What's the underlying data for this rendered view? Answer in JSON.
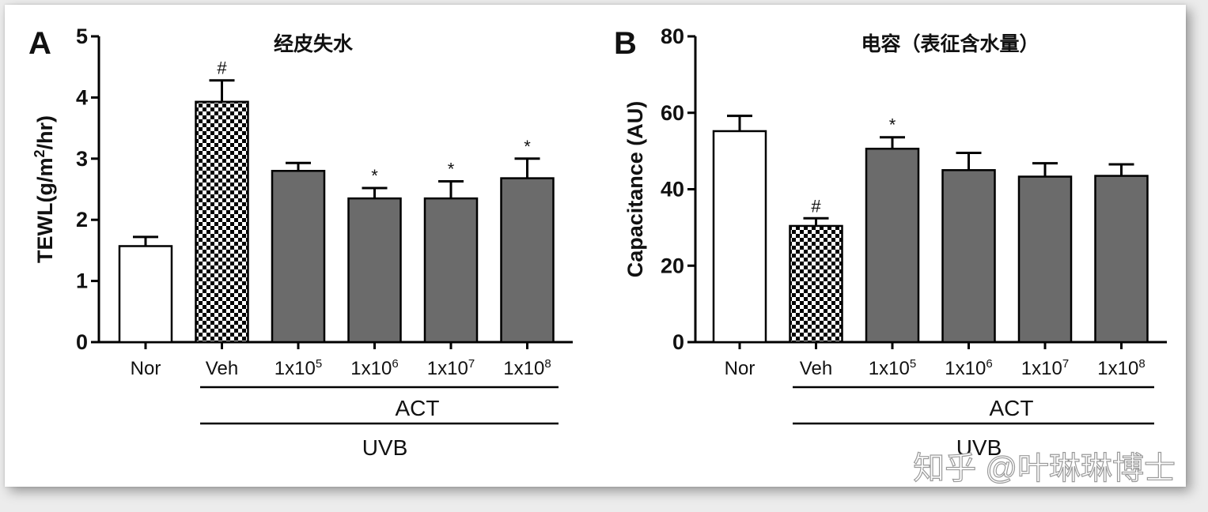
{
  "chart_data": [
    {
      "type": "bar",
      "panel": "A",
      "title": "经皮失水",
      "ylabel_main": "TEWL(g/m",
      "ylabel_sup": "2",
      "ylabel_end": "/hr)",
      "ylim": [
        0,
        5
      ],
      "yticks": [
        "0",
        "1",
        "2",
        "3",
        "4",
        "5"
      ],
      "categories": [
        {
          "base": "Nor",
          "sup": ""
        },
        {
          "base": "Veh",
          "sup": ""
        },
        {
          "base": "1x10",
          "sup": "5"
        },
        {
          "base": "1x10",
          "sup": "6"
        },
        {
          "base": "1x10",
          "sup": "7"
        },
        {
          "base": "1x10",
          "sup": "8"
        }
      ],
      "values": [
        1.57,
        3.93,
        2.8,
        2.35,
        2.35,
        2.68
      ],
      "errors": [
        0.15,
        0.35,
        0.13,
        0.17,
        0.28,
        0.32
      ],
      "fills": [
        "white",
        "checker",
        "gray",
        "gray",
        "gray",
        "gray"
      ],
      "marks": [
        "",
        "#",
        "",
        "*",
        "*",
        "*"
      ],
      "group_labels": {
        "act": "ACT",
        "uvb": "UVB"
      }
    },
    {
      "type": "bar",
      "panel": "B",
      "title": "电容（表征含水量）",
      "ylabel": "Capacitance (AU)",
      "ylim": [
        0,
        80
      ],
      "yticks": [
        "0",
        "20",
        "40",
        "60",
        "80"
      ],
      "categories": [
        {
          "base": "Nor",
          "sup": ""
        },
        {
          "base": "Veh",
          "sup": ""
        },
        {
          "base": "1x10",
          "sup": "5"
        },
        {
          "base": "1x10",
          "sup": "6"
        },
        {
          "base": "1x10",
          "sup": "7"
        },
        {
          "base": "1x10",
          "sup": "8"
        }
      ],
      "values": [
        55.2,
        30.4,
        50.6,
        45.0,
        43.3,
        43.5
      ],
      "errors": [
        4.0,
        2.0,
        3.0,
        4.5,
        3.5,
        3.0
      ],
      "fills": [
        "white",
        "checker",
        "gray",
        "gray",
        "gray",
        "gray"
      ],
      "marks": [
        "",
        "#",
        "*",
        "",
        "",
        ""
      ],
      "group_labels": {
        "act": "ACT",
        "uvb": "UVB"
      }
    }
  ],
  "watermark": "知乎 @叶琳琳博士",
  "colors": {
    "bar_gray": "#6b6b6b",
    "axis": "#000000",
    "background": "#ffffff"
  }
}
